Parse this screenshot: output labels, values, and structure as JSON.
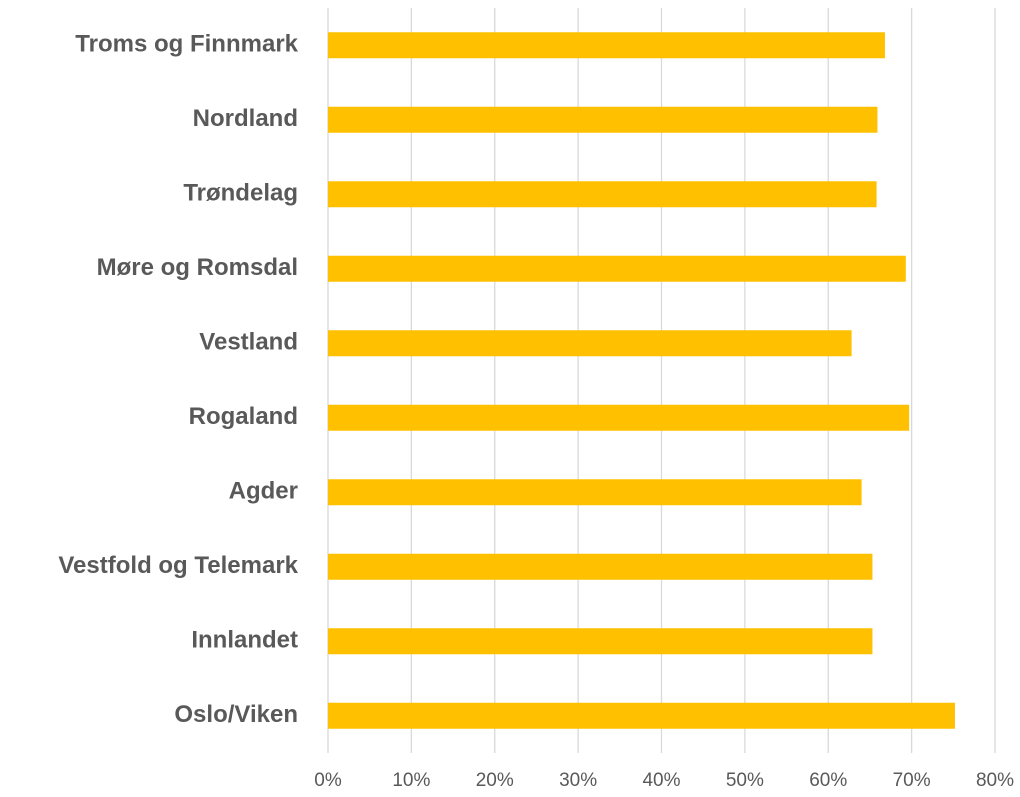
{
  "chart_data": {
    "type": "barh",
    "categories": [
      "Troms og Finnmark",
      "Nordland",
      "Trøndelag",
      "Møre og Romsdal",
      "Vestland",
      "Rogaland",
      "Agder",
      "Vestfold og Telemark",
      "Innlandet",
      "Oslo/Viken"
    ],
    "values": [
      66.8,
      65.9,
      65.8,
      69.3,
      62.8,
      69.7,
      64.0,
      65.3,
      65.3,
      75.2
    ],
    "color": "#ffc000",
    "xlim": [
      0,
      80
    ],
    "xticks": [
      {
        "value": 0,
        "label": "0%"
      },
      {
        "value": 10,
        "label": "10%"
      },
      {
        "value": 20,
        "label": "20%"
      },
      {
        "value": 30,
        "label": "30%"
      },
      {
        "value": 40,
        "label": "40%"
      },
      {
        "value": 50,
        "label": "50%"
      },
      {
        "value": 60,
        "label": "60%"
      },
      {
        "value": 70,
        "label": "70%"
      },
      {
        "value": 80,
        "label": "80%"
      }
    ],
    "grid": true
  }
}
